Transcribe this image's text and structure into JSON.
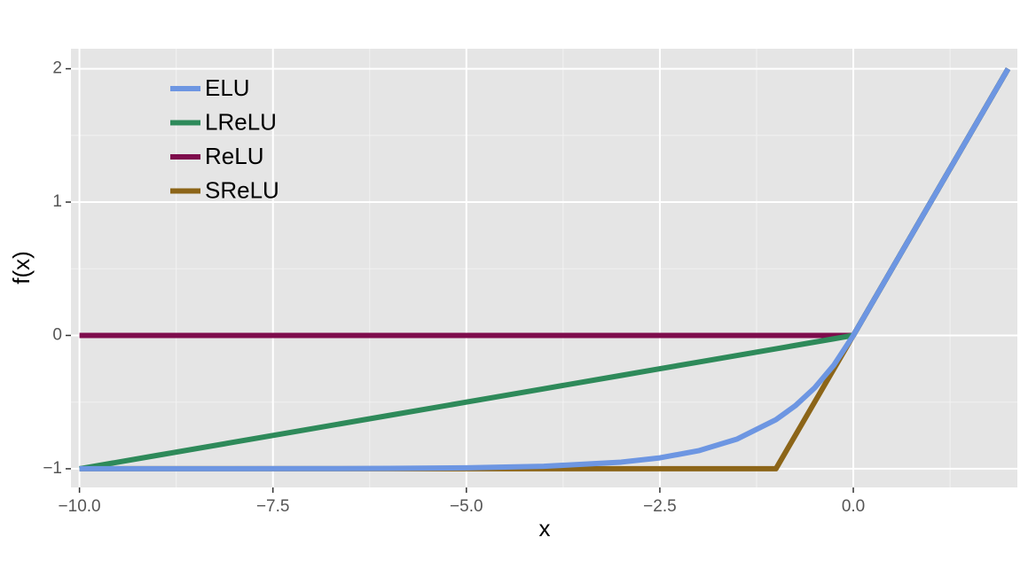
{
  "chart_data": {
    "type": "line",
    "x_label": "x",
    "y_label": "f(x)",
    "x": [
      -10,
      -9,
      -8,
      -7,
      -6,
      -5,
      -4,
      -3,
      -2.5,
      -2,
      -1.5,
      -1,
      -0.75,
      -0.5,
      -0.25,
      0,
      1,
      2
    ],
    "series": [
      {
        "name": "ELU",
        "color": "#6d96e2",
        "values": [
          -1.0,
          -0.9999,
          -0.9997,
          -0.9991,
          -0.9975,
          -0.9933,
          -0.9817,
          -0.9502,
          -0.9179,
          -0.8647,
          -0.7769,
          -0.6321,
          -0.5276,
          -0.3935,
          -0.2212,
          0,
          1,
          2
        ]
      },
      {
        "name": "LReLU",
        "color": "#2e8a5a",
        "values": [
          -1,
          -0.9,
          -0.8,
          -0.7,
          -0.6,
          -0.5,
          -0.4,
          -0.3,
          -0.25,
          -0.2,
          -0.15,
          -0.1,
          -0.075,
          -0.05,
          -0.025,
          0,
          1,
          2
        ]
      },
      {
        "name": "ReLU",
        "color": "#7e0c4c",
        "values": [
          0,
          0,
          0,
          0,
          0,
          0,
          0,
          0,
          0,
          0,
          0,
          0,
          0,
          0,
          0,
          0,
          1,
          2
        ]
      },
      {
        "name": "SReLU",
        "color": "#8c6518",
        "values": [
          -1,
          -1,
          -1,
          -1,
          -1,
          -1,
          -1,
          -1,
          -1,
          -1,
          -1,
          -1,
          -0.75,
          -0.5,
          -0.25,
          0,
          1,
          2
        ]
      }
    ],
    "xlim": [
      -10.11,
      2.12
    ],
    "ylim": [
      -1.14,
      2.15
    ],
    "xticks": [
      {
        "value": -10,
        "label": "−10.0"
      },
      {
        "value": -7.5,
        "label": "−7.5"
      },
      {
        "value": -5,
        "label": "−5.0"
      },
      {
        "value": -2.5,
        "label": "−2.5"
      },
      {
        "value": 0,
        "label": "0.0"
      }
    ],
    "yticks": [
      {
        "value": -1,
        "label": "−1"
      },
      0,
      1,
      2
    ],
    "x_minor_ticks": [
      -8.75,
      -6.25,
      -3.75,
      -1.25,
      1.25
    ],
    "y_minor_ticks": [
      -0.5,
      0.5,
      1.5
    ],
    "grid": true,
    "legend": "top-left"
  }
}
